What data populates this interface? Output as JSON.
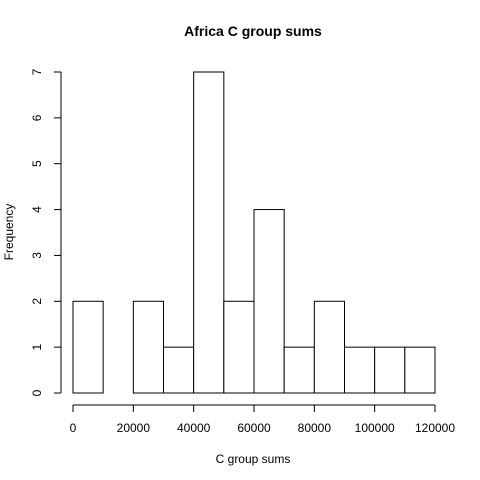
{
  "chart_data": {
    "type": "bar",
    "title": "Africa C group sums",
    "xlabel": "C group sums",
    "ylabel": "Frequency",
    "bins": [
      {
        "x0": 0,
        "x1": 10000,
        "count": 2
      },
      {
        "x0": 10000,
        "x1": 20000,
        "count": 0
      },
      {
        "x0": 20000,
        "x1": 30000,
        "count": 2
      },
      {
        "x0": 30000,
        "x1": 40000,
        "count": 1
      },
      {
        "x0": 40000,
        "x1": 50000,
        "count": 7
      },
      {
        "x0": 50000,
        "x1": 60000,
        "count": 2
      },
      {
        "x0": 60000,
        "x1": 70000,
        "count": 4
      },
      {
        "x0": 70000,
        "x1": 80000,
        "count": 1
      },
      {
        "x0": 80000,
        "x1": 90000,
        "count": 2
      },
      {
        "x0": 90000,
        "x1": 100000,
        "count": 1
      },
      {
        "x0": 100000,
        "x1": 110000,
        "count": 1
      },
      {
        "x0": 110000,
        "x1": 120000,
        "count": 1
      }
    ],
    "xticks": [
      0,
      20000,
      40000,
      60000,
      80000,
      100000,
      120000
    ],
    "xtick_labels": [
      "0",
      "20000",
      "40000",
      "60000",
      "80000",
      "100000",
      "120000"
    ],
    "yticks": [
      0,
      1,
      2,
      3,
      4,
      5,
      6,
      7
    ],
    "ytick_labels": [
      "0",
      "1",
      "2",
      "3",
      "4",
      "5",
      "6",
      "7"
    ],
    "xlim": [
      0,
      120000
    ],
    "ylim": [
      0,
      7
    ],
    "grid": false
  }
}
